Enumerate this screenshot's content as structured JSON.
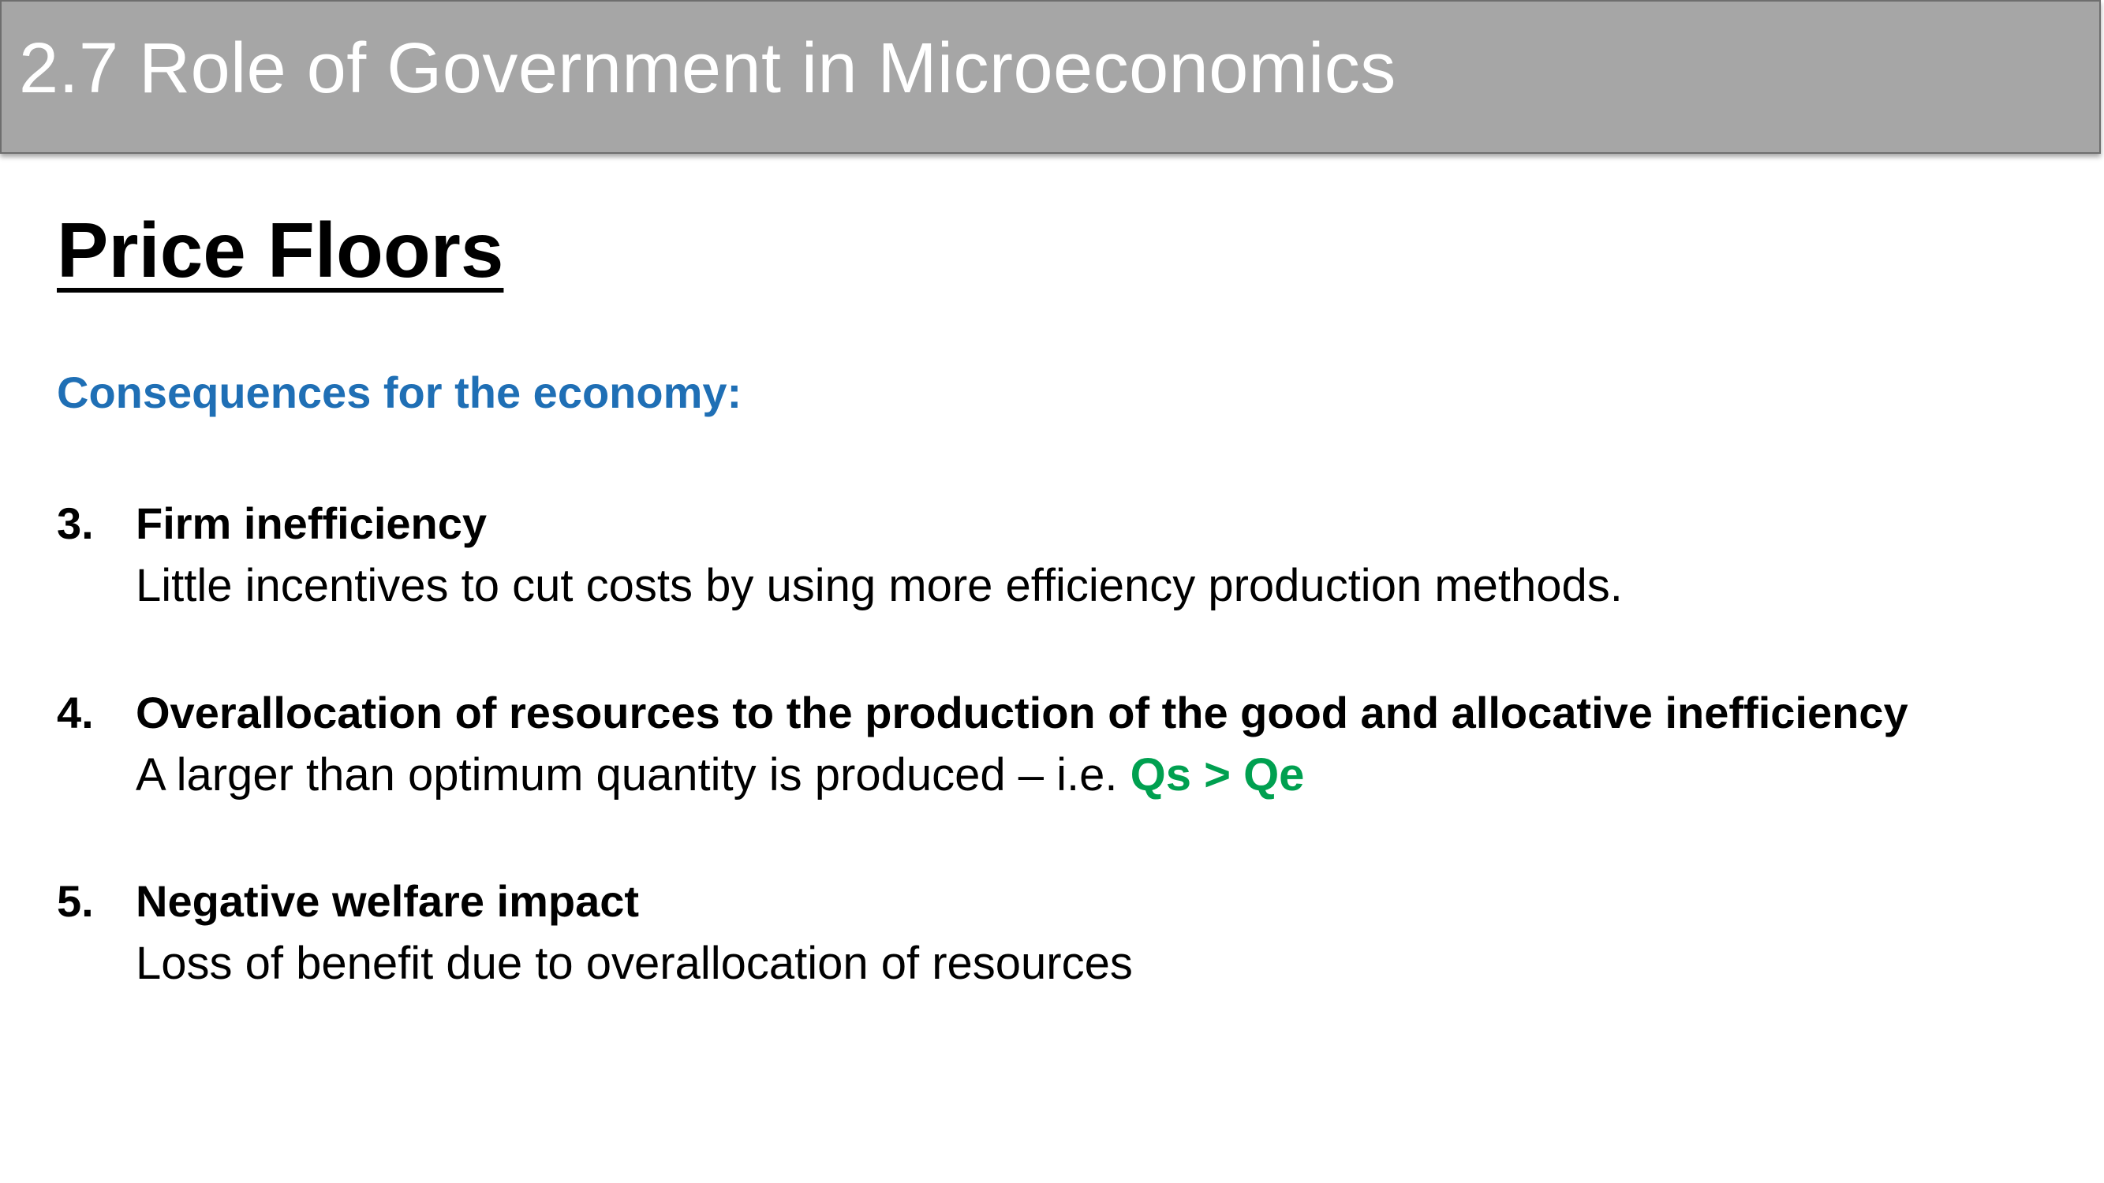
{
  "header": {
    "title": "2.7 Role of Government in Microeconomics"
  },
  "main": {
    "heading": "Price Floors",
    "subheading": "Consequences for the economy:",
    "items": [
      {
        "number": "3.",
        "title": "Firm inefficiency",
        "description": "Little incentives to cut costs by using more efficiency production methods."
      },
      {
        "number": "4.",
        "title": "Overallocation of resources to the production of the good and allocative inefficiency",
        "description": "A larger than optimum quantity is produced – i.e. ",
        "highlight": "Qs > Qe"
      },
      {
        "number": "5.",
        "title": "Negative welfare impact",
        "description": "Loss of benefit due to overallocation of resources"
      }
    ]
  },
  "colors": {
    "title_bar": "#a6a6a6",
    "subheading": "#1f6fb5",
    "highlight": "#00a050"
  }
}
